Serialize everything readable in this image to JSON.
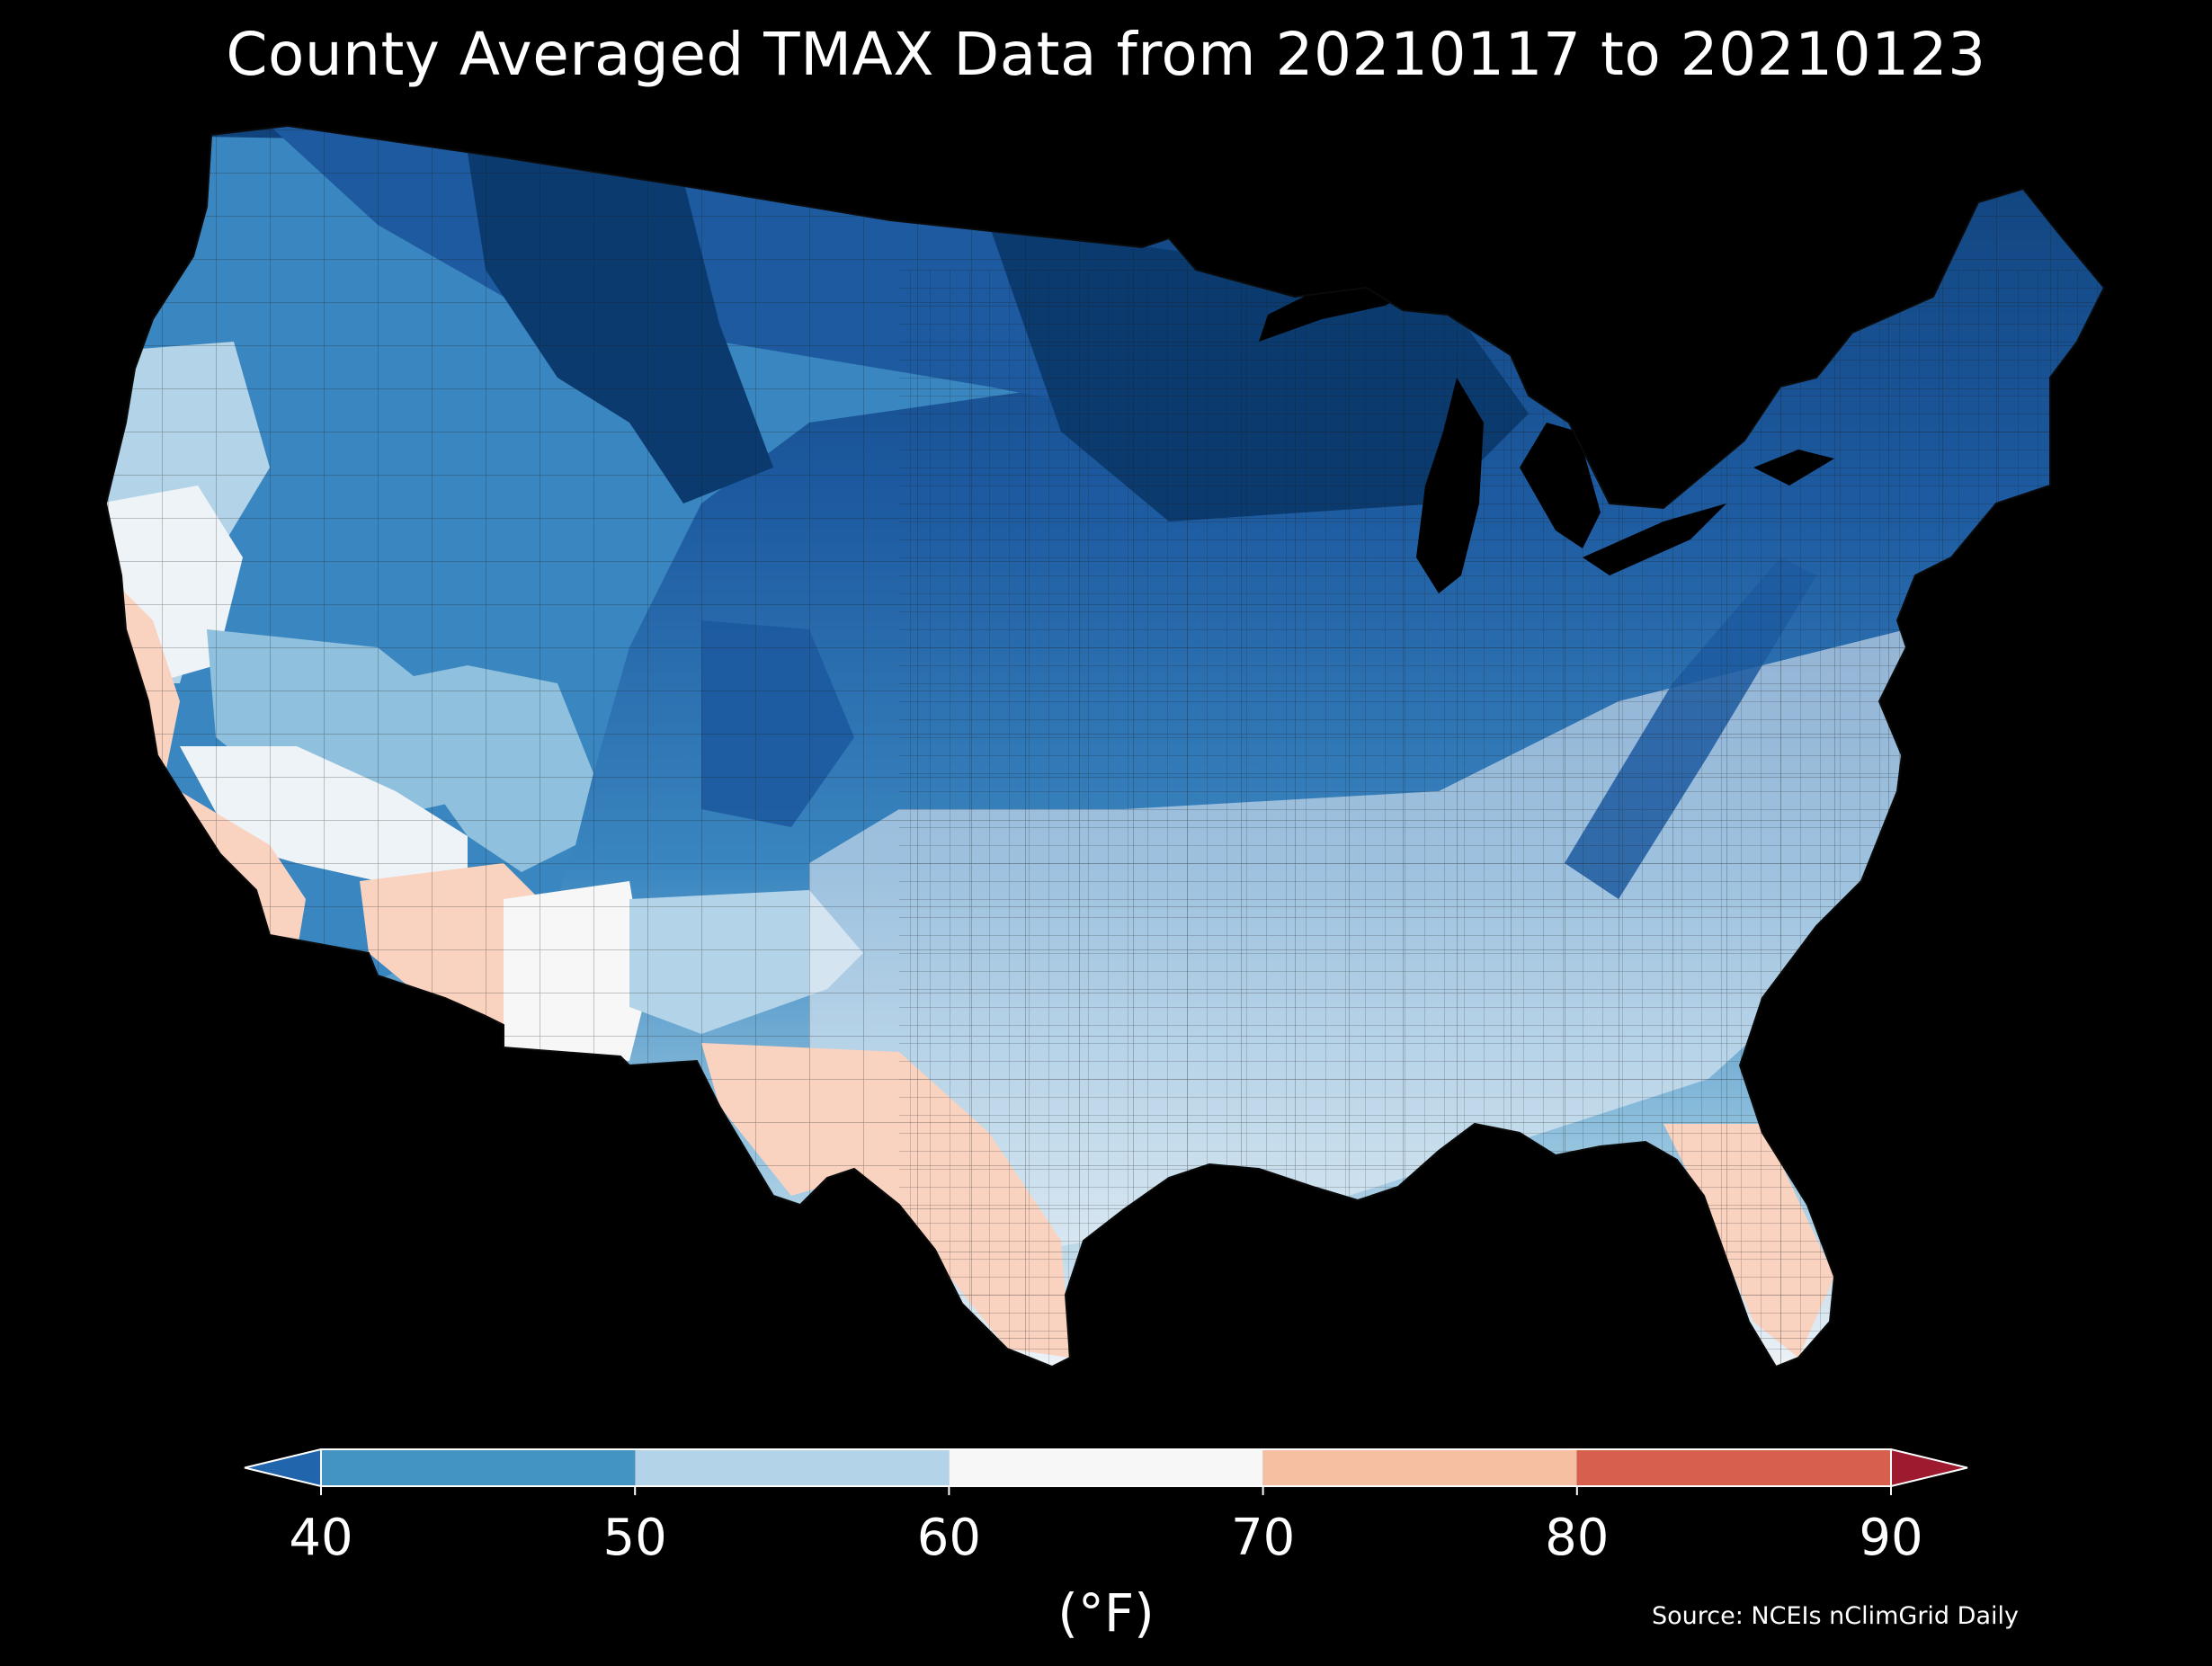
{
  "title": "County Averaged TMAX Data from 20210117 to 20210123",
  "colorbar": {
    "ticks": [
      "40",
      "50",
      "60",
      "70",
      "80",
      "90"
    ],
    "unit": "(°F)",
    "bins": [
      {
        "from": null,
        "to": 40,
        "color": "#2166ac"
      },
      {
        "from": 40,
        "to": 50,
        "color": "#4393c3"
      },
      {
        "from": 50,
        "to": 60,
        "color": "#b3d4e8"
      },
      {
        "from": 60,
        "to": 70,
        "color": "#f7f7f7"
      },
      {
        "from": 70,
        "to": 80,
        "color": "#f7bfa2"
      },
      {
        "from": 80,
        "to": 90,
        "color": "#d6604d"
      },
      {
        "from": 90,
        "to": null,
        "color": "#9e1b2f"
      }
    ]
  },
  "source": "Source: NCEIs nClimGrid Daily",
  "map_colors": {
    "background": "#000000",
    "coldest": "#0b3a6e",
    "cold": "#1d5aa0",
    "cool": "#3a86c0",
    "mild": "#8fc0dd",
    "neutral": "#eef3f7",
    "warm": "#f9d2c0",
    "water": "#000000"
  }
}
